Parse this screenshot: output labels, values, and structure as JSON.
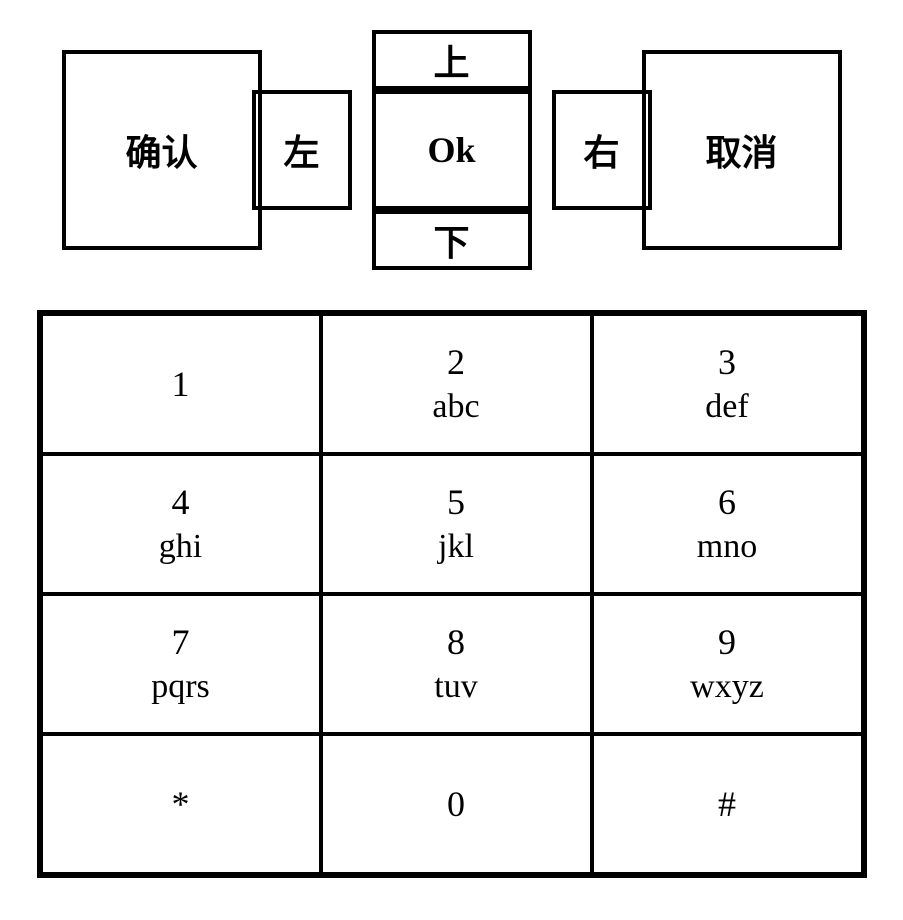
{
  "nav": {
    "confirm": "确认",
    "cancel": "取消",
    "up": "上",
    "down": "下",
    "left": "左",
    "right": "右",
    "ok": "Ok"
  },
  "keypad": {
    "keys": [
      {
        "num": "1",
        "letters": ""
      },
      {
        "num": "2",
        "letters": "abc"
      },
      {
        "num": "3",
        "letters": "def"
      },
      {
        "num": "4",
        "letters": "ghi"
      },
      {
        "num": "5",
        "letters": "jkl"
      },
      {
        "num": "6",
        "letters": "mno"
      },
      {
        "num": "7",
        "letters": "pqrs"
      },
      {
        "num": "8",
        "letters": "tuv"
      },
      {
        "num": "9",
        "letters": "wxyz"
      },
      {
        "num": "*",
        "letters": ""
      },
      {
        "num": "0",
        "letters": ""
      },
      {
        "num": "#",
        "letters": ""
      }
    ]
  },
  "style": {
    "border_color": "#000000",
    "border_width_outer": 4,
    "border_width_inner": 2,
    "background": "#ffffff",
    "font_chinese": "SimSun",
    "font_latin": "Times New Roman",
    "font_size_nav": 36,
    "font_size_key": 34
  }
}
